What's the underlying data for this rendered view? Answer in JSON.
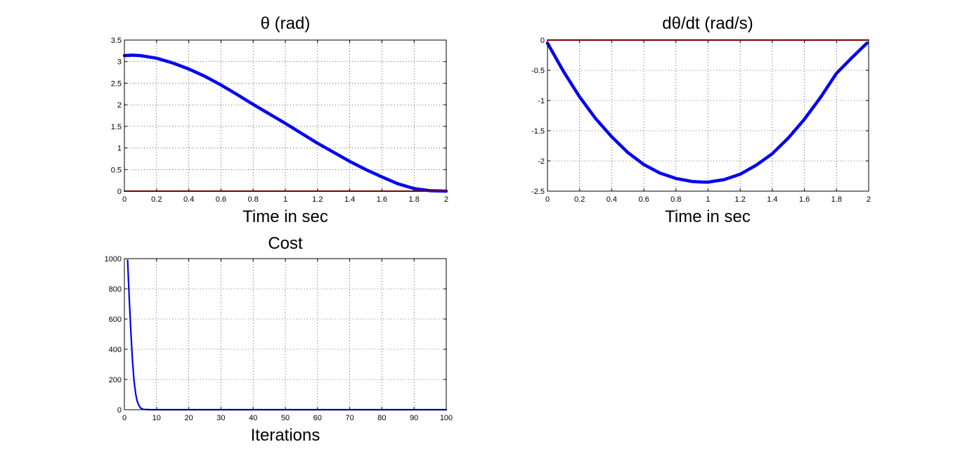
{
  "chart_data": [
    {
      "id": "theta",
      "type": "line",
      "title": "θ (rad)",
      "xlabel": "Time in sec",
      "ylabel": "",
      "xlim": [
        0,
        2
      ],
      "ylim": [
        0,
        3.5
      ],
      "xticks": [
        0,
        0.2,
        0.4,
        0.6,
        0.8,
        1,
        1.2,
        1.4,
        1.6,
        1.8,
        2
      ],
      "xtick_labels": [
        "0",
        "0.2",
        "0.4",
        "0.6",
        "0.8",
        "1",
        "1.2",
        "1.4",
        "1.6",
        "1.8",
        "2"
      ],
      "yticks": [
        0,
        0.5,
        1,
        1.5,
        2,
        2.5,
        3,
        3.5
      ],
      "ytick_labels": [
        "0",
        "0.5",
        "1",
        "1.5",
        "2",
        "2.5",
        "3",
        "3.5"
      ],
      "grid": true,
      "series": [
        {
          "color": "#0000ee",
          "line_width": "thick",
          "x": [
            0,
            0.05,
            0.1,
            0.2,
            0.3,
            0.4,
            0.5,
            0.6,
            0.7,
            0.8,
            0.9,
            1.0,
            1.1,
            1.2,
            1.3,
            1.4,
            1.5,
            1.6,
            1.7,
            1.8,
            1.9,
            2.0
          ],
          "y": [
            3.14,
            3.15,
            3.14,
            3.08,
            2.97,
            2.83,
            2.66,
            2.46,
            2.24,
            2.01,
            1.79,
            1.57,
            1.34,
            1.11,
            0.9,
            0.69,
            0.5,
            0.33,
            0.17,
            0.06,
            0.01,
            0.0
          ]
        },
        {
          "color": "#ff0000",
          "line_width": "thin",
          "x": [
            0,
            2
          ],
          "y": [
            0,
            0
          ]
        }
      ]
    },
    {
      "id": "dtheta",
      "type": "line",
      "title": "dθ/dt (rad/s)",
      "xlabel": "Time in sec",
      "ylabel": "",
      "xlim": [
        0,
        2
      ],
      "ylim": [
        -2.5,
        0
      ],
      "xticks": [
        0,
        0.2,
        0.4,
        0.6,
        0.8,
        1,
        1.2,
        1.4,
        1.6,
        1.8,
        2
      ],
      "xtick_labels": [
        "0",
        "0.2",
        "0.4",
        "0.6",
        "0.8",
        "1",
        "1.2",
        "1.4",
        "1.6",
        "1.8",
        "2"
      ],
      "yticks": [
        -2.5,
        -2,
        -1.5,
        -1,
        -0.5,
        0
      ],
      "ytick_labels": [
        "-2.5",
        "-2",
        "-1.5",
        "-1",
        "-0.5",
        "0"
      ],
      "grid": true,
      "series": [
        {
          "color": "#0000ee",
          "line_width": "thick",
          "x": [
            0,
            0.1,
            0.2,
            0.3,
            0.4,
            0.5,
            0.6,
            0.7,
            0.8,
            0.9,
            0.97,
            1.0,
            1.1,
            1.2,
            1.3,
            1.4,
            1.5,
            1.6,
            1.7,
            1.8,
            1.9,
            1.99
          ],
          "y": [
            -0.05,
            -0.52,
            -0.94,
            -1.3,
            -1.6,
            -1.86,
            -2.06,
            -2.2,
            -2.29,
            -2.34,
            -2.35,
            -2.35,
            -2.31,
            -2.22,
            -2.07,
            -1.88,
            -1.62,
            -1.31,
            -0.95,
            -0.55,
            -0.28,
            -0.05
          ]
        },
        {
          "color": "#ff0000",
          "line_width": "thin",
          "x": [
            0,
            2
          ],
          "y": [
            0,
            0
          ]
        }
      ]
    },
    {
      "id": "cost",
      "type": "line",
      "title": "Cost",
      "xlabel": "Iterations",
      "ylabel": "",
      "xlim": [
        0,
        100
      ],
      "ylim": [
        0,
        1000
      ],
      "xticks": [
        0,
        10,
        20,
        30,
        40,
        50,
        60,
        70,
        80,
        90,
        100
      ],
      "xtick_labels": [
        "0",
        "10",
        "20",
        "30",
        "40",
        "50",
        "60",
        "70",
        "80",
        "90",
        "100"
      ],
      "yticks": [
        0,
        200,
        400,
        600,
        800,
        1000
      ],
      "ytick_labels": [
        "0",
        "200",
        "400",
        "600",
        "800",
        "1000"
      ],
      "grid": true,
      "series": [
        {
          "color": "#0000ee",
          "line_width": "medium",
          "x": [
            1,
            1.5,
            2,
            2.5,
            3,
            3.5,
            4,
            4.5,
            5,
            5.5,
            6,
            7,
            8,
            10,
            20,
            40,
            60,
            80,
            100
          ],
          "y": [
            990,
            740,
            520,
            330,
            190,
            105,
            55,
            28,
            12,
            5,
            2,
            1,
            0,
            0,
            0,
            0,
            0,
            0,
            0
          ]
        }
      ]
    }
  ]
}
